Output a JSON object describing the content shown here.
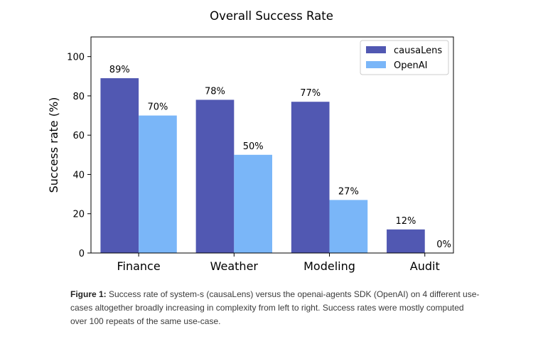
{
  "chart_data": {
    "type": "bar",
    "title": "Overall Success Rate",
    "ylabel": "Success rate (%)",
    "xlabel": "",
    "categories": [
      "Finance",
      "Weather",
      "Modeling",
      "Audit"
    ],
    "ylim": [
      0,
      110
    ],
    "yticks": [
      0,
      20,
      40,
      60,
      80,
      100
    ],
    "series": [
      {
        "name": "causaLens",
        "color": "#5158b2",
        "values": [
          89,
          78,
          77,
          12
        ],
        "labels": [
          "89%",
          "78%",
          "77%",
          "12%"
        ]
      },
      {
        "name": "OpenAI",
        "color": "#7ab6f8",
        "values": [
          70,
          50,
          27,
          0
        ],
        "labels": [
          "70%",
          "50%",
          "27%",
          "0%"
        ]
      }
    ],
    "legend": "top-right",
    "grid": false
  },
  "caption": {
    "label": "Figure 1:",
    "text": " Success rate of system-s (causaLens) versus the openai-agents SDK (OpenAI) on 4 different use-cases altogether broadly increasing in complexity from left to right. Success rates were mostly computed over 100 repeats of the same use-case."
  }
}
